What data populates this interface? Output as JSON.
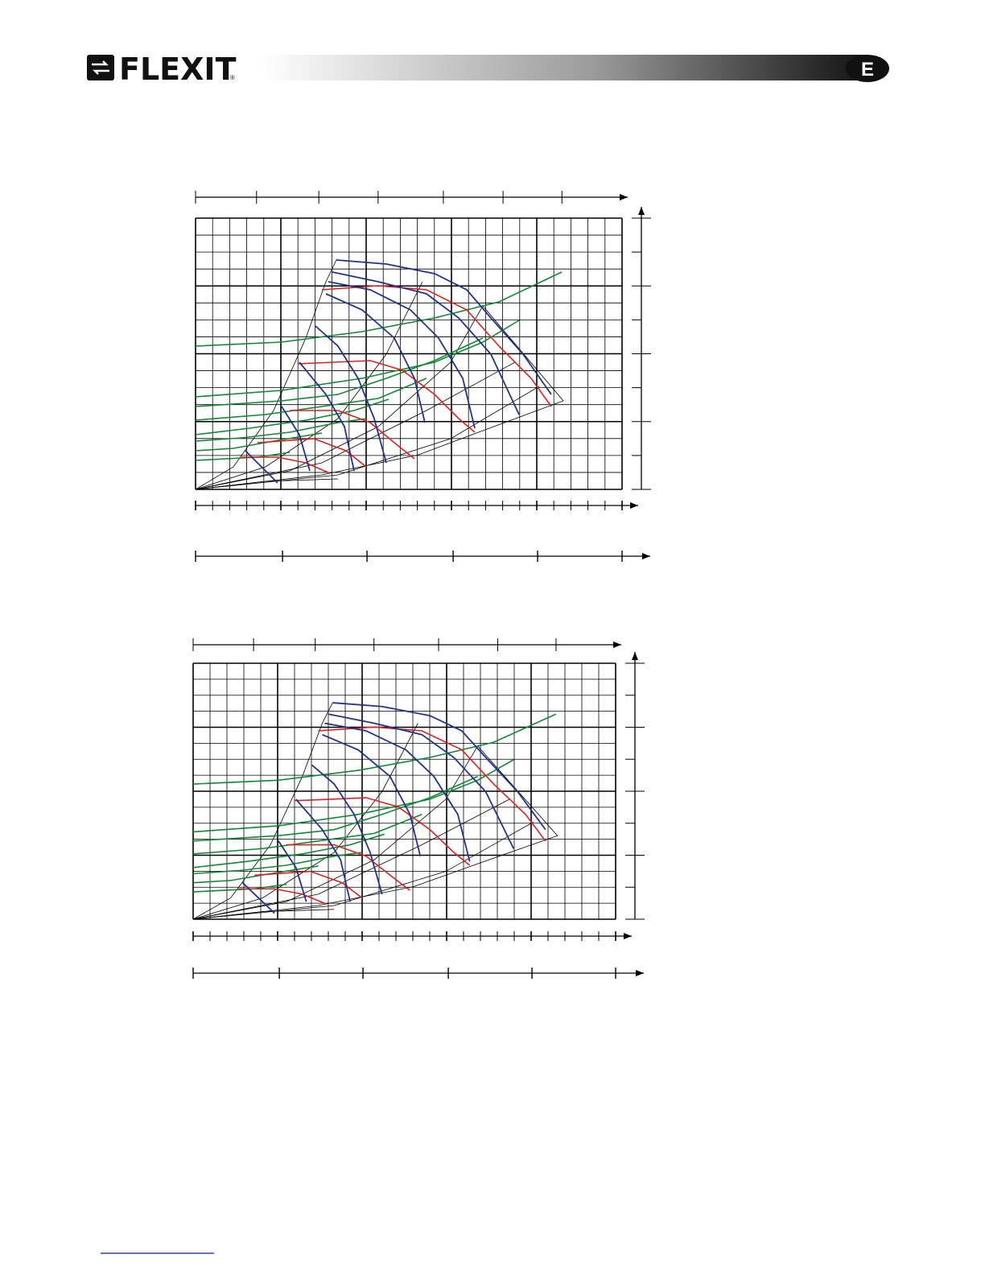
{
  "header": {
    "logo": "FLEXIT",
    "registered": "®",
    "section": "E"
  }
}
